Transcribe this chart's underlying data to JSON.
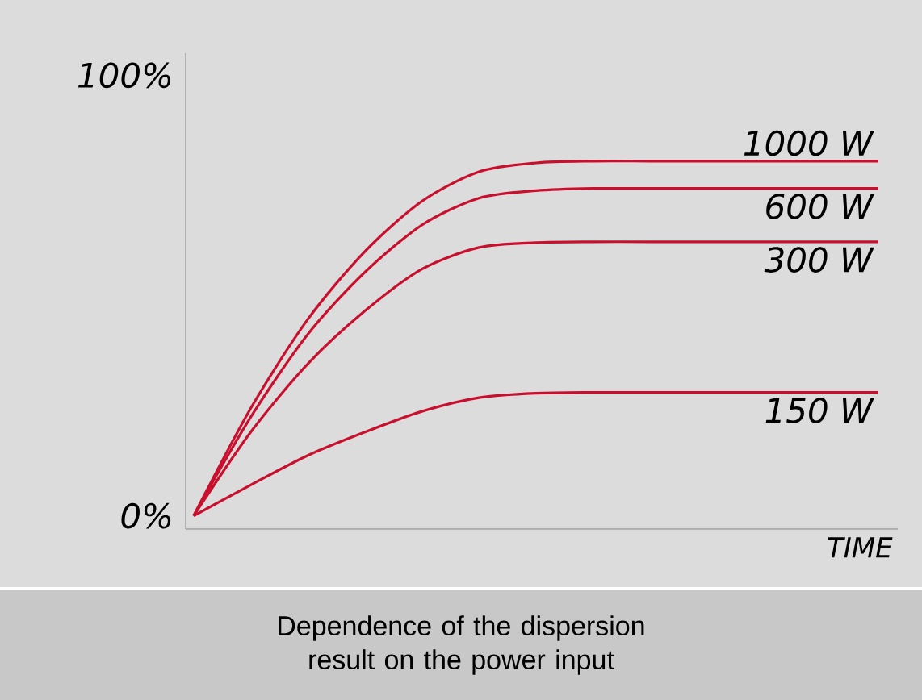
{
  "chart_data": {
    "type": "line",
    "categories": [
      null,
      null,
      null,
      null,
      null,
      null,
      null,
      null,
      null,
      null,
      null,
      null,
      null
    ],
    "series": [
      {
        "name": "1000 W",
        "color": "#c8102e",
        "values": [
          0,
          24.4,
          44.6,
          60.0,
          71.4,
          78.1,
          80.1,
          80.5,
          80.5,
          80.5,
          80.5,
          80.5,
          80.5
        ]
      },
      {
        "name": "600 W",
        "color": "#c8102e",
        "values": [
          0,
          22.4,
          41.2,
          55.3,
          66.0,
          72.1,
          73.8,
          74.3,
          74.3,
          74.3,
          74.3,
          74.3,
          74.3
        ]
      },
      {
        "name": "300 W",
        "color": "#c8102e",
        "values": [
          0,
          19.0,
          34.5,
          46.5,
          56.0,
          60.9,
          62.0,
          62.2,
          62.2,
          62.2,
          62.2,
          62.2,
          62.2
        ]
      },
      {
        "name": "150 W",
        "color": "#c8102e",
        "values": [
          0,
          7.0,
          13.7,
          19.0,
          23.7,
          26.8,
          27.8,
          28.0,
          28.0,
          28.0,
          28.0,
          28.0,
          28.0
        ]
      }
    ],
    "xlabel": "TIME",
    "ylim": [
      -3,
      105
    ],
    "yticks": [
      {
        "value": 0,
        "label": "0%"
      },
      {
        "value": 100,
        "label": "100%"
      }
    ],
    "tick_labels": "y",
    "annotations": [
      "Dependence of the dispersion result on the power input"
    ]
  }
}
